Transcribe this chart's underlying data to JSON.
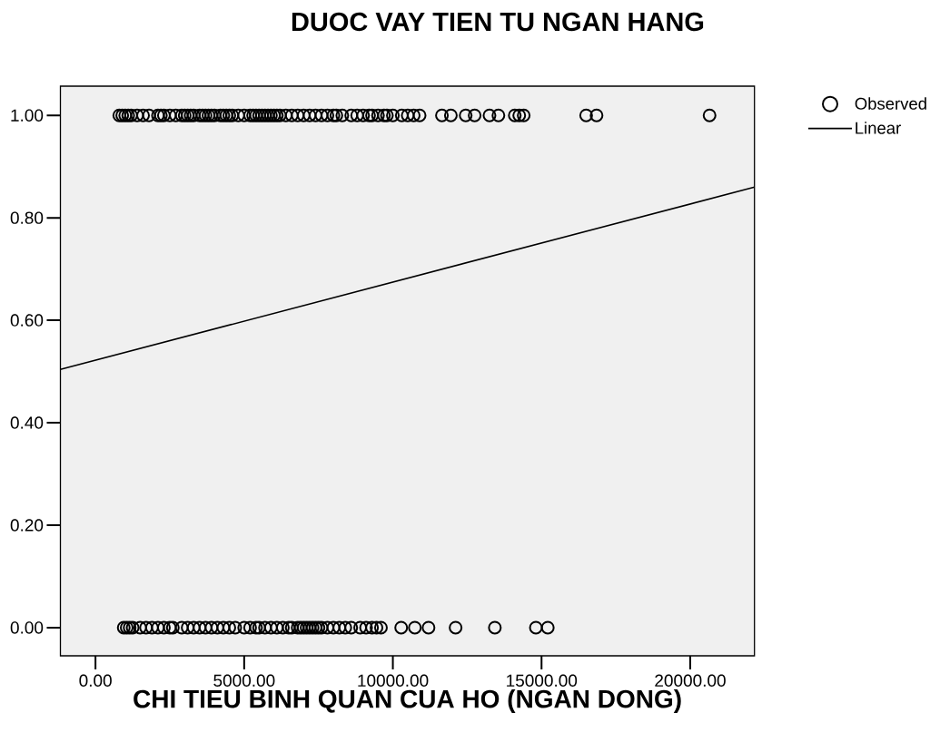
{
  "chart_data": {
    "type": "scatter",
    "title": "DUOC VAY TIEN TU NGAN HANG",
    "xlabel": "CHI TIEU BINH QUAN CUA HO (NGAN DONG)",
    "xlim": [
      -1180,
      22160
    ],
    "ylim": [
      -0.055,
      1.057
    ],
    "xticks": [
      {
        "value": 0,
        "label": "0.00"
      },
      {
        "value": 5000,
        "label": "5000.00"
      },
      {
        "value": 10000,
        "label": "10000.00"
      },
      {
        "value": 15000,
        "label": "15000.00"
      },
      {
        "value": 20000,
        "label": "20000.00"
      }
    ],
    "yticks": [
      {
        "value": 0,
        "label": "0.00"
      },
      {
        "value": 0.2,
        "label": "0.20"
      },
      {
        "value": 0.4,
        "label": "0.40"
      },
      {
        "value": 0.6,
        "label": "0.60"
      },
      {
        "value": 0.8,
        "label": "0.80"
      },
      {
        "value": 1,
        "label": "1.00"
      }
    ],
    "legend": "top right",
    "series": [
      {
        "name": "Observed",
        "color": "#000000",
        "marker": "circle",
        "x": [
          800,
          900,
          1000,
          1100,
          1200,
          1400,
          1600,
          1800,
          2100,
          2200,
          2300,
          2500,
          2700,
          2900,
          3000,
          3100,
          3200,
          3300,
          3500,
          3600,
          3700,
          3800,
          3900,
          4000,
          4200,
          4300,
          4400,
          4500,
          4600,
          4800,
          5000,
          5200,
          5300,
          5400,
          5500,
          5600,
          5700,
          5800,
          5900,
          6000,
          6100,
          6200,
          6400,
          6600,
          6800,
          7000,
          7200,
          7400,
          7600,
          7800,
          8000,
          8100,
          8300,
          8600,
          8800,
          9000,
          9200,
          9300,
          9500,
          9700,
          9800,
          10000,
          10300,
          10500,
          10700,
          10900,
          11650,
          11950,
          12450,
          12750,
          13250,
          13550,
          14100,
          14250,
          14400,
          16500,
          16850,
          20650,
          950,
          1050,
          1150,
          1250,
          1500,
          1700,
          1900,
          2100,
          2300,
          2500,
          2600,
          2900,
          3100,
          3300,
          3500,
          3700,
          3900,
          4100,
          4300,
          4500,
          4700,
          5000,
          5200,
          5400,
          5500,
          5700,
          5900,
          6100,
          6300,
          6500,
          6600,
          6800,
          6900,
          7000,
          7100,
          7200,
          7300,
          7400,
          7500,
          7600,
          7800,
          8000,
          8200,
          8400,
          8600,
          8900,
          9100,
          9300,
          9450,
          9600,
          10280,
          10740,
          11200,
          12110,
          13430,
          14810,
          15210
        ],
        "values": [
          1,
          1,
          1,
          1,
          1,
          1,
          1,
          1,
          1,
          1,
          1,
          1,
          1,
          1,
          1,
          1,
          1,
          1,
          1,
          1,
          1,
          1,
          1,
          1,
          1,
          1,
          1,
          1,
          1,
          1,
          1,
          1,
          1,
          1,
          1,
          1,
          1,
          1,
          1,
          1,
          1,
          1,
          1,
          1,
          1,
          1,
          1,
          1,
          1,
          1,
          1,
          1,
          1,
          1,
          1,
          1,
          1,
          1,
          1,
          1,
          1,
          1,
          1,
          1,
          1,
          1,
          1,
          1,
          1,
          1,
          1,
          1,
          1,
          1,
          1,
          1,
          1,
          1,
          0,
          0,
          0,
          0,
          0,
          0,
          0,
          0,
          0,
          0,
          0,
          0,
          0,
          0,
          0,
          0,
          0,
          0,
          0,
          0,
          0,
          0,
          0,
          0,
          0,
          0,
          0,
          0,
          0,
          0,
          0,
          0,
          0,
          0,
          0,
          0,
          0,
          0,
          0,
          0,
          0,
          0,
          0,
          0,
          0,
          0,
          0,
          0,
          0,
          0,
          0,
          0,
          0,
          0,
          0,
          0,
          0
        ]
      },
      {
        "name": "Linear",
        "type": "line",
        "color": "#000000",
        "line_style": "solid",
        "x": [
          -1180,
          22160
        ],
        "values": [
          0.504,
          0.86
        ]
      }
    ]
  }
}
